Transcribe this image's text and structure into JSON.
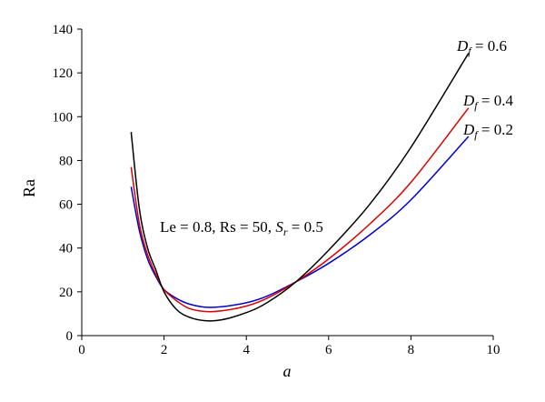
{
  "chart_data": {
    "type": "line",
    "xlabel": "a",
    "ylabel": "Ra",
    "xlim": [
      0,
      10
    ],
    "ylim": [
      0,
      140
    ],
    "xticks": [
      0,
      2,
      4,
      6,
      8,
      10
    ],
    "yticks": [
      0,
      20,
      40,
      60,
      80,
      100,
      120,
      140
    ],
    "grid": false,
    "annotation": {
      "prefix": "Le = 0.8, Rs = 50, ",
      "symbol": "S",
      "subscript": "r",
      "suffix": " = 0.5"
    },
    "series": [
      {
        "symbol": "D",
        "subscript": "f",
        "label_value": " = 0.2",
        "color": "#0000cc",
        "points": [
          [
            1.2,
            68
          ],
          [
            1.4,
            48
          ],
          [
            1.6,
            35
          ],
          [
            1.8,
            27
          ],
          [
            2.0,
            21
          ],
          [
            2.3,
            17
          ],
          [
            2.6,
            14.5
          ],
          [
            3.0,
            13
          ],
          [
            3.4,
            13.2
          ],
          [
            4.0,
            15
          ],
          [
            4.5,
            18
          ],
          [
            5.2,
            24.5
          ],
          [
            6.0,
            33
          ],
          [
            7.0,
            46
          ],
          [
            8.0,
            62
          ],
          [
            9.4,
            91
          ]
        ]
      },
      {
        "symbol": "D",
        "subscript": "f",
        "label_value": " = 0.4",
        "color": "#dd0000",
        "points": [
          [
            1.2,
            77
          ],
          [
            1.4,
            51
          ],
          [
            1.6,
            37
          ],
          [
            1.8,
            28
          ],
          [
            2.0,
            21
          ],
          [
            2.3,
            16
          ],
          [
            2.6,
            12.5
          ],
          [
            3.0,
            11
          ],
          [
            3.4,
            11.3
          ],
          [
            4.0,
            13.5
          ],
          [
            4.5,
            17
          ],
          [
            5.2,
            24.5
          ],
          [
            6.0,
            35
          ],
          [
            7.0,
            51
          ],
          [
            8.0,
            70
          ],
          [
            9.4,
            104
          ]
        ]
      },
      {
        "symbol": "D",
        "subscript": "f",
        "label_value": " = 0.6",
        "color": "#000000",
        "points": [
          [
            1.2,
            93
          ],
          [
            1.4,
            58
          ],
          [
            1.6,
            40
          ],
          [
            1.8,
            30
          ],
          [
            2.0,
            20
          ],
          [
            2.3,
            12
          ],
          [
            2.6,
            8.5
          ],
          [
            3.0,
            6.8
          ],
          [
            3.4,
            7.2
          ],
          [
            4.0,
            10.5
          ],
          [
            4.5,
            15
          ],
          [
            5.2,
            24.5
          ],
          [
            6.0,
            39
          ],
          [
            7.0,
            60
          ],
          [
            8.0,
            86
          ],
          [
            9.4,
            129
          ]
        ]
      }
    ]
  }
}
